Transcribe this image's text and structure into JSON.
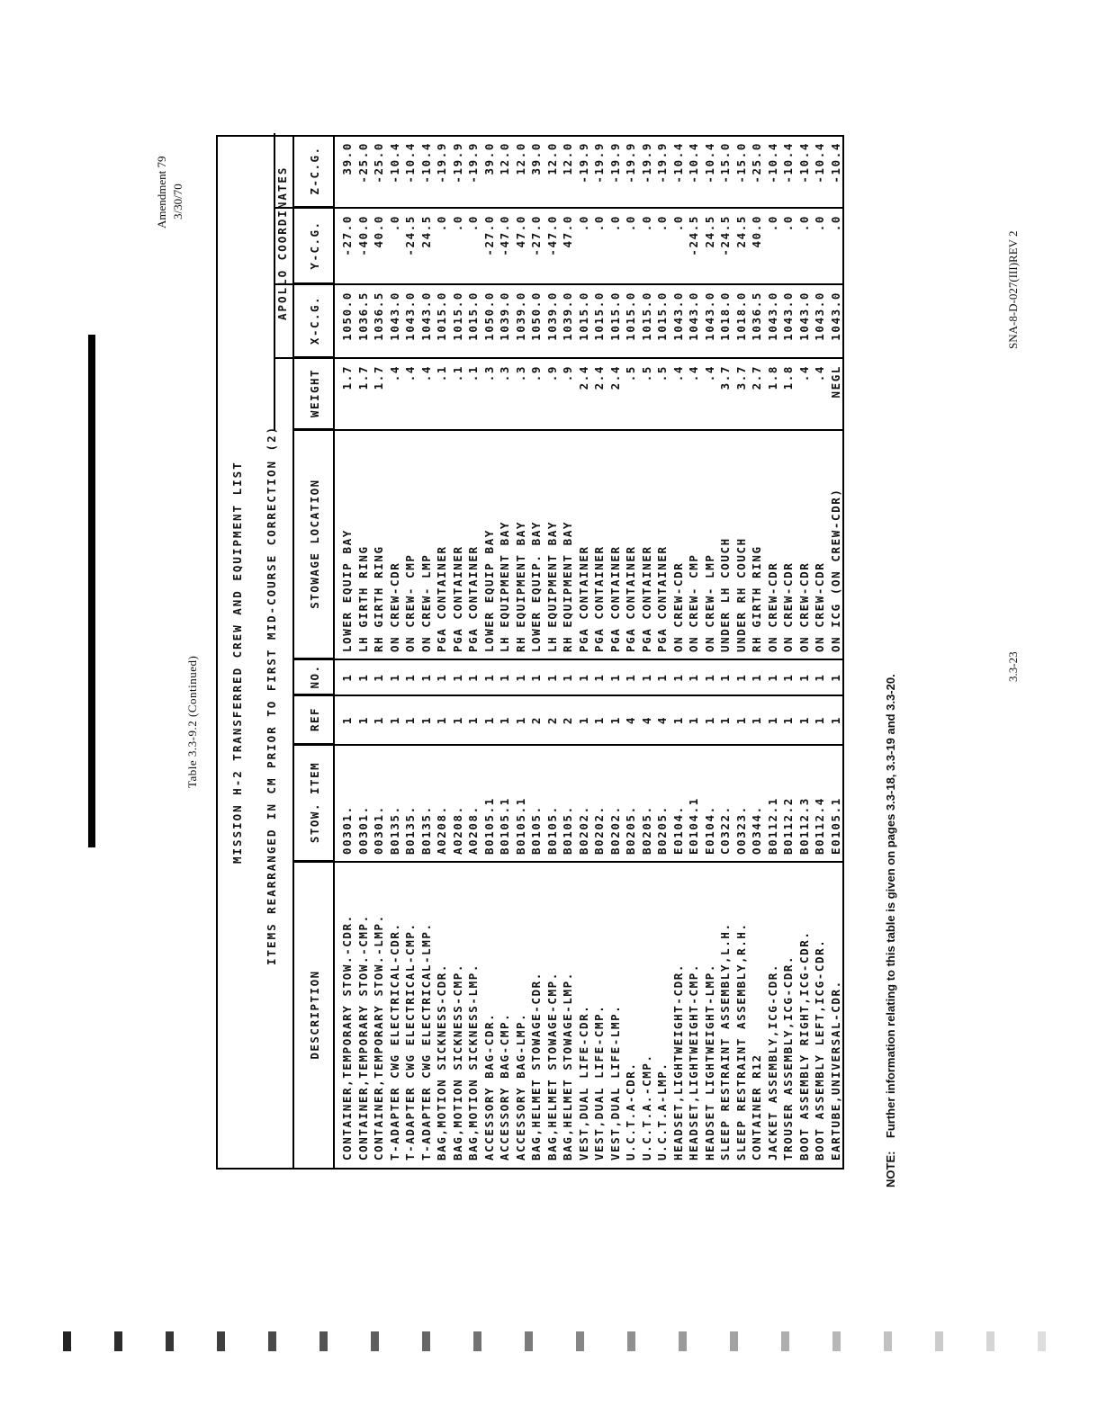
{
  "header": {
    "amendment": "Amendment 79",
    "date": "3/30/70",
    "table_caption": "Table 3.3-9.2 (Continued)"
  },
  "table": {
    "title": "MISSION H-2 TRANSFERRED CREW AND EQUIPMENT LIST",
    "subtitle": "ITEMS REARRANGED IN CM PRIOR TO FIRST MID-COURSE CORRECTION (2)",
    "group_header": "APOLLO COORDINATES",
    "columns": [
      "DESCRIPTION",
      "STOW. ITEM",
      "REF",
      "NO.",
      "STOWAGE LOCATION",
      "WEIGHT",
      "X-C.G.",
      "Y-C.G.",
      "Z-C.G."
    ],
    "rows": [
      [
        "CONTAINER,TEMPORARY STOW.-CDR.",
        "00301.",
        "1",
        "1",
        "LOWER EQUIP BAY",
        "1.7",
        "1050.0",
        "-27.0",
        "39.0"
      ],
      [
        "CONTAINER,TEMPORARY STOW.-CMP.",
        "00301.",
        "1",
        "1",
        "LH GIRTH RING",
        "1.7",
        "1036.5",
        "-40.0",
        "-25.0"
      ],
      [
        "CONTAINER,TEMPORARY STOW.-LMP.",
        "00301.",
        "1",
        "1",
        "RH GIRTH RING",
        "1.7",
        "1036.5",
        "40.0",
        "-25.0"
      ],
      [
        "T-ADAPTER CWG ELECTRICAL-CDR.",
        "B0135.",
        "1",
        "1",
        "ON CREW-CDR",
        ".4",
        "1043.0",
        ".0",
        "-10.4"
      ],
      [
        "T-ADAPTER CWG ELECTRICAL-CMP.",
        "B0135.",
        "1",
        "1",
        "ON CREW- CMP",
        ".4",
        "1043.0",
        "-24.5",
        "-10.4"
      ],
      [
        "T-ADAPTER CWG ELECTRICAL-LMP.",
        "B0135.",
        "1",
        "1",
        "ON CREW- LMP",
        ".4",
        "1043.0",
        "24.5",
        "-10.4"
      ],
      [
        "BAG,MOTION SICKNESS-CDR.",
        "A0208.",
        "1",
        "1",
        "PGA CONTAINER",
        ".1",
        "1015.0",
        ".0",
        "-19.9"
      ],
      [
        "BAG,MOTION SICKNESS-CMP.",
        "A0208.",
        "1",
        "1",
        "PGA CONTAINER",
        ".1",
        "1015.0",
        ".0",
        "-19.9"
      ],
      [
        "BAG,MOTION SICKNESS-LMP.",
        "A0208.",
        "1",
        "1",
        "PGA CONTAINER",
        ".1",
        "1015.0",
        ".0",
        "-19.9"
      ],
      [
        "ACCESSORY BAG-CDR.",
        "B0105.1",
        "1",
        "1",
        "LOWER EQUIP BAY",
        ".3",
        "1050.0",
        "-27.0",
        "39.0"
      ],
      [
        "ACCESSORY BAG-CMP.",
        "B0105.1",
        "1",
        "1",
        "LH EQUIPMENT BAY",
        ".3",
        "1039.0",
        "-47.0",
        "12.0"
      ],
      [
        "ACCESSORY BAG-LMP.",
        "B0105.1",
        "1",
        "1",
        "RH EQUIPMENT BAY",
        ".3",
        "1039.0",
        "47.0",
        "12.0"
      ],
      [
        "BAG,HELMET STOWAGE-CDR.",
        "B0105.",
        "2",
        "1",
        "LOWER EQUIP. BAY",
        ".9",
        "1050.0",
        "-27.0",
        "39.0"
      ],
      [
        "BAG,HELMET STOWAGE-CMP.",
        "B0105.",
        "2",
        "1",
        "LH EQUIPMENT BAY",
        ".9",
        "1039.0",
        "-47.0",
        "12.0"
      ],
      [
        "BAG,HELMET STOWAGE-LMP.",
        "B0105.",
        "2",
        "1",
        "RH EQUIPMENT BAY",
        ".9",
        "1039.0",
        "47.0",
        "12.0"
      ],
      [
        "VEST,DUAL LIFE-CDR.",
        "B0202.",
        "1",
        "1",
        "PGA CONTAINER",
        "2.4",
        "1015.0",
        ".0",
        "-19.9"
      ],
      [
        "VEST,DUAL LIFE-CMP.",
        "B0202.",
        "1",
        "1",
        "PGA CONTAINER",
        "2.4",
        "1015.0",
        ".0",
        "-19.9"
      ],
      [
        "VEST,DUAL LIFE-LMP.",
        "B0202.",
        "1",
        "1",
        "PGA CONTAINER",
        "2.4",
        "1015.0",
        ".0",
        "-19.9"
      ],
      [
        "U.C.T.A-CDR.",
        "B0205.",
        "4",
        "1",
        "PGA CONTAINER",
        ".5",
        "1015.0",
        ".0",
        "-19.9"
      ],
      [
        "U.C.T.A.-CMP.",
        "B0205.",
        "4",
        "1",
        "PGA CONTAINER",
        ".5",
        "1015.0",
        ".0",
        "-19.9"
      ],
      [
        "U.C.T.A-LMP.",
        "B0205.",
        "4",
        "1",
        "PGA CONTAINER",
        ".5",
        "1015.0",
        ".0",
        "-19.9"
      ],
      [
        "HEADSET,LIGHTWEIGHT-CDR.",
        "E0104.",
        "1",
        "1",
        "ON CREW-CDR",
        ".4",
        "1043.0",
        ".0",
        "-10.4"
      ],
      [
        "HEADSET,LIGHTWEIGHT-CMP.",
        "E0104.1",
        "1",
        "1",
        "ON CREW- CMP",
        ".4",
        "1043.0",
        "-24.5",
        "-10.4"
      ],
      [
        "HEADSET LIGHTWEIGHT-LMP.",
        "E0104.",
        "1",
        "1",
        "ON CREW- LMP",
        ".4",
        "1043.0",
        "24.5",
        "-10.4"
      ],
      [
        "SLEEP RESTRAINT ASSEMBLY,L.H.",
        "C0322.",
        "1",
        "1",
        "UNDER LH COUCH",
        "3.7",
        "1018.0",
        "-24.5",
        "-15.0"
      ],
      [
        "SLEEP RESTRAINT ASSEMBLY,R.H.",
        "O0323.",
        "1",
        "1",
        "UNDER RH COUCH",
        "3.7",
        "1018.0",
        "24.5",
        "-15.0"
      ],
      [
        "CONTAINER R12",
        "O0344.",
        "1",
        "1",
        "RH GIRTH RING",
        "2.7",
        "1036.5",
        "40.0",
        "-25.0"
      ],
      [
        "JACKET ASSEMBLY,ICG-CDR.",
        "B0112.1",
        "1",
        "1",
        "ON CREW-CDR",
        "1.8",
        "1043.0",
        ".0",
        "-10.4"
      ],
      [
        "TROUSER ASSEMBLY,ICG-CDR.",
        "B0112.2",
        "1",
        "1",
        "ON CREW-CDR",
        "1.8",
        "1043.0",
        ".0",
        "-10.4"
      ],
      [
        "BOOT ASSEMBLY RIGHT,ICG-CDR.",
        "B0112.3",
        "1",
        "1",
        "ON CREW-CDR",
        ".4",
        "1043.0",
        ".0",
        "-10.4"
      ],
      [
        "BOOT ASSEMBLY LEFT,ICG-CDR.",
        "B0112.4",
        "1",
        "1",
        "ON CREW-CDR",
        ".4",
        "1043.0",
        ".0",
        "-10.4"
      ],
      [
        "EARTUBE,UNIVERSAL-CDR.",
        "E0105.1",
        "1",
        "1",
        "ON ICG (ON CREW-CDR)",
        "NEGL",
        "1043.0",
        ".0",
        "-10.4"
      ]
    ]
  },
  "note": {
    "label": "NOTE:",
    "text": "Further information relating to this table is given on pages 3.3-18, 3.3-19 and 3.3-20."
  },
  "footer": {
    "page_number": "3.3-23",
    "document_id": "SNA-8-D-027(III)REV 2"
  }
}
